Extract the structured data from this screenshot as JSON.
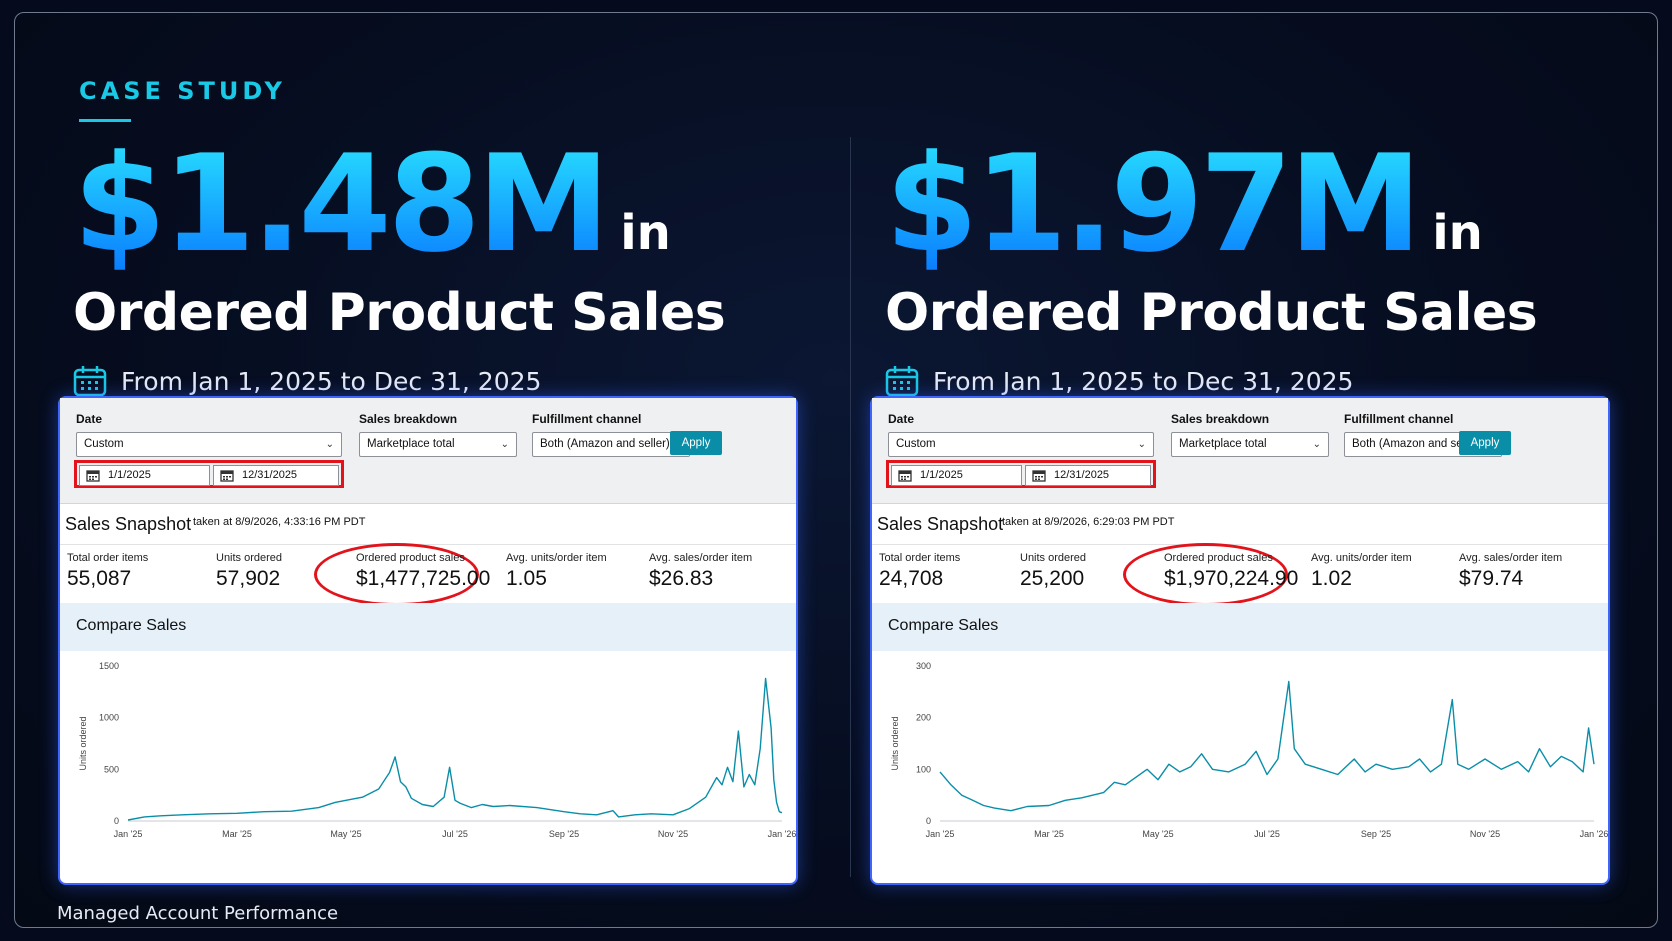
{
  "header": {
    "kicker": "CASE STUDY"
  },
  "footer": {
    "text": "Managed Account Performance"
  },
  "colors": {
    "accent": "#19c9e6",
    "highlight": "#e3131b",
    "line": "#0a8ea8"
  },
  "panels": [
    {
      "amount": "$1.48M",
      "in_word": "in",
      "headline": "Ordered Product Sales",
      "date_range": "From Jan 1, 2025 to Dec 31, 2025",
      "icon": "calendar-icon",
      "filters": {
        "date_label": "Date",
        "date_select": "Custom",
        "breakdown_label": "Sales breakdown",
        "breakdown_select": "Marketplace total",
        "fulfillment_label": "Fulfillment channel",
        "fulfillment_select": "Both (Amazon and seller)",
        "apply": "Apply",
        "start_date": "1/1/2025",
        "end_date": "12/31/2025"
      },
      "snapshot": {
        "title": "Sales Snapshot",
        "taken": "taken at 8/9/2026, 4:33:16 PM PDT"
      },
      "metrics": [
        {
          "label": "Total order items",
          "value": "55,087"
        },
        {
          "label": "Units ordered",
          "value": "57,902"
        },
        {
          "label": "Ordered product sales",
          "value": "$1,477,725.00"
        },
        {
          "label": "Avg. units/order item",
          "value": "1.05"
        },
        {
          "label": "Avg. sales/order item",
          "value": "$26.83"
        }
      ],
      "compare_title": "Compare Sales",
      "chart_data": {
        "type": "line",
        "ylabel": "Units ordered",
        "ylim": [
          0,
          1500
        ],
        "yticks": [
          "0",
          "500",
          "1000",
          "1500"
        ],
        "xticks": [
          "Jan '25",
          "Mar '25",
          "May '25",
          "Jul '25",
          "Sep '25",
          "Nov '25",
          "Jan '26"
        ],
        "xrange_months": [
          0,
          12
        ],
        "series": [
          {
            "values": [
              [
                0,
                10
              ],
              [
                0.3,
                40
              ],
              [
                0.6,
                50
              ],
              [
                1,
                60
              ],
              [
                1.5,
                70
              ],
              [
                2,
                75
              ],
              [
                2.5,
                90
              ],
              [
                3,
                95
              ],
              [
                3.5,
                130
              ],
              [
                3.8,
                180
              ],
              [
                4,
                200
              ],
              [
                4.3,
                230
              ],
              [
                4.6,
                310
              ],
              [
                4.8,
                470
              ],
              [
                4.9,
                620
              ],
              [
                5.0,
                380
              ],
              [
                5.1,
                330
              ],
              [
                5.2,
                220
              ],
              [
                5.4,
                160
              ],
              [
                5.6,
                140
              ],
              [
                5.8,
                230
              ],
              [
                5.9,
                520
              ],
              [
                6.0,
                200
              ],
              [
                6.1,
                170
              ],
              [
                6.3,
                130
              ],
              [
                6.5,
                160
              ],
              [
                6.7,
                140
              ],
              [
                7,
                150
              ],
              [
                7.5,
                130
              ],
              [
                8,
                90
              ],
              [
                8.3,
                70
              ],
              [
                8.6,
                60
              ],
              [
                8.9,
                100
              ],
              [
                9,
                40
              ],
              [
                9.3,
                60
              ],
              [
                9.6,
                70
              ],
              [
                10,
                60
              ],
              [
                10.3,
                120
              ],
              [
                10.6,
                230
              ],
              [
                10.8,
                420
              ],
              [
                10.9,
                350
              ],
              [
                11.0,
                520
              ],
              [
                11.1,
                380
              ],
              [
                11.2,
                870
              ],
              [
                11.3,
                330
              ],
              [
                11.4,
                450
              ],
              [
                11.5,
                350
              ],
              [
                11.6,
                700
              ],
              [
                11.7,
                1380
              ],
              [
                11.8,
                900
              ],
              [
                11.85,
                400
              ],
              [
                11.9,
                180
              ],
              [
                11.95,
                90
              ],
              [
                12,
                80
              ]
            ]
          }
        ]
      }
    },
    {
      "amount": "$1.97M",
      "in_word": "in",
      "headline": "Ordered Product Sales",
      "date_range": "From Jan 1, 2025 to Dec 31, 2025",
      "icon": "calendar-icon",
      "filters": {
        "date_label": "Date",
        "date_select": "Custom",
        "breakdown_label": "Sales breakdown",
        "breakdown_select": "Marketplace total",
        "fulfillment_label": "Fulfillment channel",
        "fulfillment_select": "Both (Amazon and seller)",
        "apply": "Apply",
        "start_date": "1/1/2025",
        "end_date": "12/31/2025"
      },
      "snapshot": {
        "title": "Sales Snapshot",
        "taken": "taken at 8/9/2026, 6:29:03 PM PDT"
      },
      "metrics": [
        {
          "label": "Total order items",
          "value": "24,708"
        },
        {
          "label": "Units ordered",
          "value": "25,200"
        },
        {
          "label": "Ordered product sales",
          "value": "$1,970,224.90"
        },
        {
          "label": "Avg. units/order item",
          "value": "1.02"
        },
        {
          "label": "Avg. sales/order item",
          "value": "$79.74"
        }
      ],
      "compare_title": "Compare Sales",
      "chart_data": {
        "type": "line",
        "ylabel": "Units ordered",
        "ylim": [
          0,
          300
        ],
        "yticks": [
          "0",
          "100",
          "200",
          "300"
        ],
        "xticks": [
          "Jan '25",
          "Mar '25",
          "May '25",
          "Jul '25",
          "Sep '25",
          "Nov '25",
          "Jan '26"
        ],
        "xrange_months": [
          0,
          12
        ],
        "series": [
          {
            "values": [
              [
                0,
                95
              ],
              [
                0.2,
                70
              ],
              [
                0.4,
                50
              ],
              [
                0.6,
                40
              ],
              [
                0.8,
                30
              ],
              [
                1,
                25
              ],
              [
                1.3,
                20
              ],
              [
                1.6,
                28
              ],
              [
                2,
                30
              ],
              [
                2.3,
                40
              ],
              [
                2.6,
                45
              ],
              [
                3,
                55
              ],
              [
                3.2,
                75
              ],
              [
                3.4,
                70
              ],
              [
                3.6,
                85
              ],
              [
                3.8,
                100
              ],
              [
                4,
                80
              ],
              [
                4.2,
                110
              ],
              [
                4.4,
                95
              ],
              [
                4.6,
                105
              ],
              [
                4.8,
                130
              ],
              [
                5,
                100
              ],
              [
                5.3,
                95
              ],
              [
                5.6,
                110
              ],
              [
                5.8,
                135
              ],
              [
                6,
                90
              ],
              [
                6.2,
                120
              ],
              [
                6.4,
                270
              ],
              [
                6.5,
                140
              ],
              [
                6.7,
                110
              ],
              [
                7,
                100
              ],
              [
                7.3,
                90
              ],
              [
                7.6,
                120
              ],
              [
                7.8,
                95
              ],
              [
                8,
                110
              ],
              [
                8.3,
                100
              ],
              [
                8.6,
                105
              ],
              [
                8.8,
                120
              ],
              [
                9,
                95
              ],
              [
                9.2,
                110
              ],
              [
                9.4,
                235
              ],
              [
                9.5,
                110
              ],
              [
                9.7,
                100
              ],
              [
                10,
                120
              ],
              [
                10.3,
                100
              ],
              [
                10.6,
                115
              ],
              [
                10.8,
                95
              ],
              [
                11,
                140
              ],
              [
                11.2,
                105
              ],
              [
                11.4,
                125
              ],
              [
                11.6,
                115
              ],
              [
                11.8,
                95
              ],
              [
                11.9,
                180
              ],
              [
                12,
                110
              ]
            ]
          }
        ]
      }
    }
  ]
}
